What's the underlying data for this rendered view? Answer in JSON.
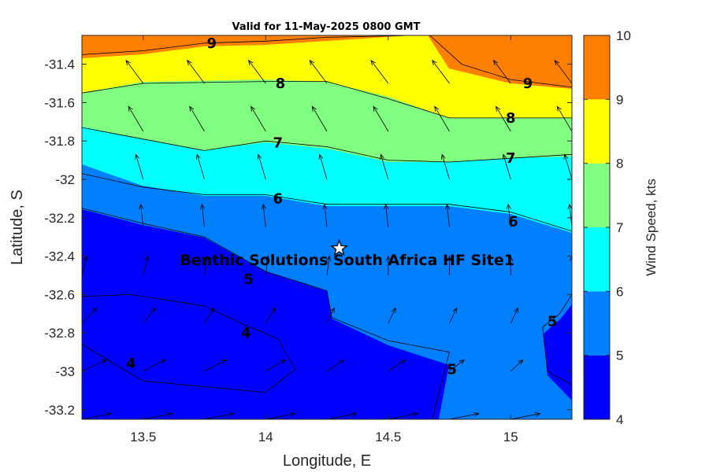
{
  "chart_data": {
    "type": "heatmap",
    "subtype": "filled-contour-with-wind-vectors",
    "title": "Valid for 11-May-2025 0800 GMT",
    "xlabel": "Longitude, E",
    "ylabel": "Latitude, S",
    "colorbar_label": "Wind Speed, kts",
    "xlim": [
      13.25,
      15.25
    ],
    "ylim": [
      -33.25,
      -31.25
    ],
    "xticks": [
      13.5,
      14,
      14.5,
      15
    ],
    "xtick_labels": [
      "13.5",
      "14",
      "14.5",
      "15"
    ],
    "yticks": [
      -31.4,
      -31.6,
      -31.8,
      -32,
      -32.2,
      -32.4,
      -32.6,
      -32.8,
      -33,
      -33.2
    ],
    "ytick_labels": [
      "-31.4",
      "-31.6",
      "-31.8",
      "-32",
      "-32.2",
      "-32.4",
      "-32.6",
      "-32.8",
      "-33",
      "-33.2"
    ],
    "levels": [
      4,
      5,
      6,
      7,
      8,
      9,
      10
    ],
    "level_labels": [
      "4",
      "5",
      "6",
      "7",
      "8",
      "9",
      "10"
    ],
    "colors": [
      "#0000ff",
      "#0080ff",
      "#00ffff",
      "#80ff80",
      "#ffff00",
      "#ff8000"
    ],
    "site": {
      "name": "Benthic Solutions South Africa HF Site1",
      "lon": 14.3,
      "lat": -32.36
    },
    "contours": [
      {
        "level": 9,
        "points": [
          [
            13.25,
            -31.35
          ],
          [
            13.5,
            -31.33
          ],
          [
            13.75,
            -31.29
          ],
          [
            14.0,
            -31.28
          ],
          [
            14.25,
            -31.26
          ],
          [
            14.6,
            -31.25
          ]
        ]
      },
      {
        "level": 9,
        "points": [
          [
            14.67,
            -31.25
          ],
          [
            14.8,
            -31.4
          ],
          [
            15.0,
            -31.48
          ],
          [
            15.25,
            -31.52
          ]
        ]
      },
      {
        "level": 8,
        "points": [
          [
            13.25,
            -31.55
          ],
          [
            13.5,
            -31.5
          ],
          [
            14.0,
            -31.49
          ],
          [
            14.25,
            -31.49
          ],
          [
            14.5,
            -31.58
          ],
          [
            14.75,
            -31.68
          ],
          [
            15.0,
            -31.68
          ],
          [
            15.25,
            -31.68
          ]
        ]
      },
      {
        "level": 7,
        "points": [
          [
            13.25,
            -31.73
          ],
          [
            13.5,
            -31.79
          ],
          [
            13.75,
            -31.85
          ],
          [
            14.0,
            -31.8
          ],
          [
            14.25,
            -31.83
          ],
          [
            14.5,
            -31.9
          ],
          [
            14.75,
            -31.91
          ],
          [
            15.0,
            -31.89
          ],
          [
            15.25,
            -31.87
          ]
        ]
      },
      {
        "level": 6,
        "points": [
          [
            13.25,
            -31.97
          ],
          [
            13.5,
            -32.04
          ],
          [
            13.75,
            -32.08
          ],
          [
            14.0,
            -32.08
          ],
          [
            14.25,
            -32.13
          ],
          [
            14.5,
            -32.13
          ],
          [
            14.75,
            -32.13
          ],
          [
            15.0,
            -32.17
          ],
          [
            15.25,
            -32.27
          ]
        ]
      },
      {
        "level": 5,
        "points": [
          [
            13.25,
            -32.15
          ],
          [
            13.5,
            -32.23
          ],
          [
            13.75,
            -32.3
          ],
          [
            14.0,
            -32.48
          ],
          [
            14.25,
            -32.58
          ],
          [
            14.27,
            -32.72
          ],
          [
            14.5,
            -32.84
          ],
          [
            14.75,
            -32.9
          ],
          [
            14.68,
            -33.25
          ]
        ]
      },
      {
        "level": 5,
        "points": [
          [
            15.25,
            -32.6
          ],
          [
            15.2,
            -32.7
          ],
          [
            15.13,
            -32.77
          ],
          [
            15.15,
            -33.0
          ],
          [
            15.25,
            -33.07
          ]
        ]
      },
      {
        "level": 4,
        "points": [
          [
            13.25,
            -32.61
          ],
          [
            13.45,
            -32.6
          ],
          [
            13.75,
            -32.66
          ],
          [
            13.9,
            -32.75
          ],
          [
            14.05,
            -32.83
          ],
          [
            14.12,
            -32.99
          ],
          [
            14.0,
            -33.11
          ],
          [
            13.75,
            -33.08
          ],
          [
            13.5,
            -33.05
          ],
          [
            13.25,
            -32.86
          ]
        ]
      }
    ],
    "contour_labels": [
      {
        "text": "9",
        "lon": 13.78,
        "lat": -31.29
      },
      {
        "text": "9",
        "lon": 15.07,
        "lat": -31.5
      },
      {
        "text": "8",
        "lon": 14.06,
        "lat": -31.5
      },
      {
        "text": "8",
        "lon": 15.0,
        "lat": -31.68
      },
      {
        "text": "7",
        "lon": 14.05,
        "lat": -31.81
      },
      {
        "text": "7",
        "lon": 15.0,
        "lat": -31.89
      },
      {
        "text": "6",
        "lon": 14.05,
        "lat": -32.1
      },
      {
        "text": "6",
        "lon": 15.01,
        "lat": -32.22
      },
      {
        "text": "5",
        "lon": 13.93,
        "lat": -32.52
      },
      {
        "text": "5",
        "lon": 14.76,
        "lat": -32.99
      },
      {
        "text": "5",
        "lon": 15.17,
        "lat": -32.74
      },
      {
        "text": "4",
        "lon": 13.92,
        "lat": -32.8
      },
      {
        "text": "4",
        "lon": 13.45,
        "lat": -32.96
      }
    ],
    "wind_vectors": {
      "lons": [
        13.25,
        13.5,
        13.75,
        14.0,
        14.25,
        14.5,
        14.75,
        15.0,
        15.25
      ],
      "lats": [
        -31.25,
        -31.5,
        -31.75,
        -32.0,
        -32.25,
        -32.5,
        -32.75,
        -33.0,
        -33.25
      ],
      "u": [
        [
          -0.04,
          -0.04,
          -0.05,
          -0.05,
          -0.05,
          -0.05,
          -0.05,
          -0.05,
          -0.05
        ],
        [
          -0.07,
          -0.07,
          -0.07,
          -0.07,
          -0.07,
          -0.07,
          -0.07,
          -0.07,
          -0.07
        ],
        [
          -0.07,
          -0.06,
          -0.06,
          -0.06,
          -0.06,
          -0.06,
          -0.06,
          -0.06,
          -0.06
        ],
        [
          -0.03,
          -0.03,
          -0.03,
          -0.03,
          -0.03,
          -0.03,
          -0.03,
          -0.03,
          -0.03
        ],
        [
          -0.01,
          -0.01,
          -0.01,
          -0.01,
          -0.01,
          -0.01,
          -0.01,
          -0.01,
          -0.01
        ],
        [
          0.02,
          0.02,
          0.01,
          0.01,
          0.01,
          0.0,
          0.0,
          0.0,
          0.0
        ],
        [
          0.06,
          0.05,
          0.04,
          0.04,
          0.03,
          0.03,
          0.03,
          0.03,
          0.03
        ],
        [
          0.1,
          0.09,
          0.09,
          0.08,
          0.07,
          0.07,
          0.06,
          0.05,
          0.05
        ],
        [
          0.12,
          0.12,
          0.12,
          0.12,
          0.12,
          0.12,
          0.12,
          0.12,
          0.12
        ]
      ],
      "v": [
        [
          0.09,
          0.09,
          0.09,
          0.09,
          0.09,
          0.09,
          0.09,
          0.09,
          0.09
        ],
        [
          0.12,
          0.12,
          0.12,
          0.12,
          0.12,
          0.12,
          0.12,
          0.12,
          0.12
        ],
        [
          0.13,
          0.13,
          0.13,
          0.13,
          0.13,
          0.13,
          0.13,
          0.13,
          0.13
        ],
        [
          0.13,
          0.13,
          0.13,
          0.13,
          0.13,
          0.13,
          0.13,
          0.13,
          0.13
        ],
        [
          0.12,
          0.12,
          0.12,
          0.12,
          0.12,
          0.12,
          0.12,
          0.12,
          0.12
        ],
        [
          0.1,
          0.1,
          0.1,
          0.1,
          0.1,
          0.1,
          0.1,
          0.1,
          0.1
        ],
        [
          0.08,
          0.08,
          0.08,
          0.08,
          0.08,
          0.08,
          0.08,
          0.08,
          0.08
        ],
        [
          0.06,
          0.06,
          0.06,
          0.06,
          0.06,
          0.06,
          0.06,
          0.06,
          0.06
        ],
        [
          0.03,
          0.03,
          0.03,
          0.03,
          0.03,
          0.03,
          0.03,
          0.03,
          0.03
        ]
      ]
    }
  }
}
